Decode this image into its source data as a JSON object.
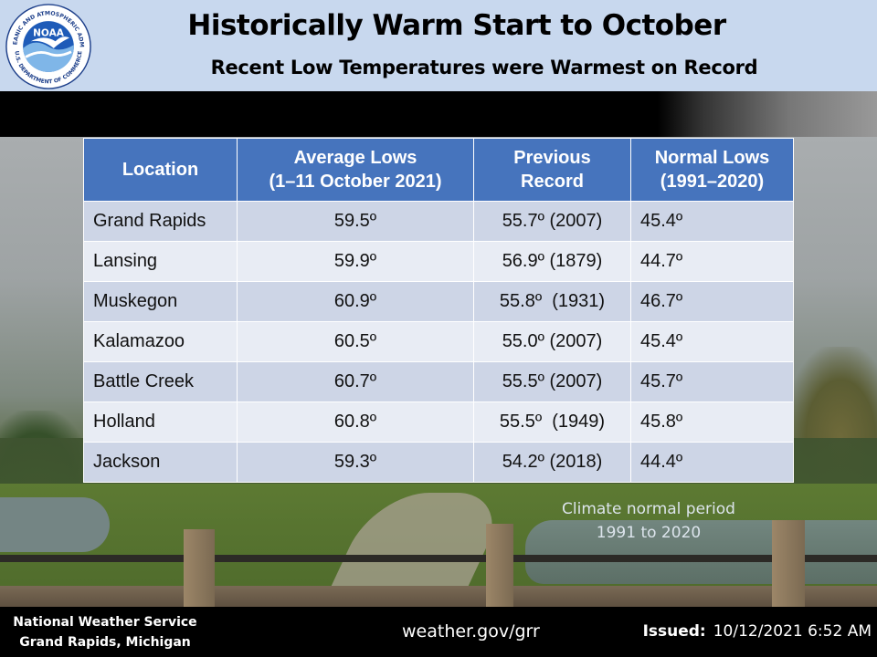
{
  "header": {
    "title": "Historically Warm Start to October",
    "subtitle": "Recent Low Temperatures were Warmest on Record",
    "logo": {
      "text": "NOAA",
      "ring_top": "NATIONAL OCEANIC AND ATMOSPHERIC ADMINISTRATION",
      "ring_bottom": "U.S. DEPARTMENT OF COMMERCE",
      "icon": "noaa-bird-logo"
    }
  },
  "table": {
    "columns": [
      [
        "Location"
      ],
      [
        "Average Lows",
        "(1–11 October 2021)"
      ],
      [
        "Previous",
        "Record"
      ],
      [
        "Normal Lows",
        "(1991–2020)"
      ]
    ],
    "rows": [
      {
        "location": "Grand Rapids",
        "average_low": "59.5º",
        "previous_record": "55.7º (2007)",
        "normal_low": "45.4º"
      },
      {
        "location": "Lansing",
        "average_low": "59.9º",
        "previous_record": "56.9º (1879)",
        "normal_low": "44.7º"
      },
      {
        "location": "Muskegon",
        "average_low": "60.9º",
        "previous_record": "55.8º  (1931)",
        "normal_low": "46.7º"
      },
      {
        "location": "Kalamazoo",
        "average_low": "60.5º",
        "previous_record": "55.0º (2007)",
        "normal_low": "45.4º"
      },
      {
        "location": "Battle Creek",
        "average_low": "60.7º",
        "previous_record": "55.5º (2007)",
        "normal_low": "45.7º"
      },
      {
        "location": "Holland",
        "average_low": "60.8º",
        "previous_record": "55.5º  (1949)",
        "normal_low": "45.8º"
      },
      {
        "location": "Jackson",
        "average_low": "59.3º",
        "previous_record": "54.2º (2018)",
        "normal_low": "44.4º"
      }
    ]
  },
  "note": {
    "line1": "Climate normal period",
    "line2": "1991 to 2020"
  },
  "footer": {
    "office_name": "National Weather Service",
    "office_location": "Grand Rapids, Michigan",
    "url": "weather.gov/grr",
    "issued_label": "Issued:",
    "issued_value": "10/12/2021 6:52 AM"
  },
  "colors": {
    "header_bg": "#c8d8ee",
    "table_header": "#4674bd",
    "row_odd": "#cdd5e6",
    "row_even": "#e8ecf4"
  }
}
